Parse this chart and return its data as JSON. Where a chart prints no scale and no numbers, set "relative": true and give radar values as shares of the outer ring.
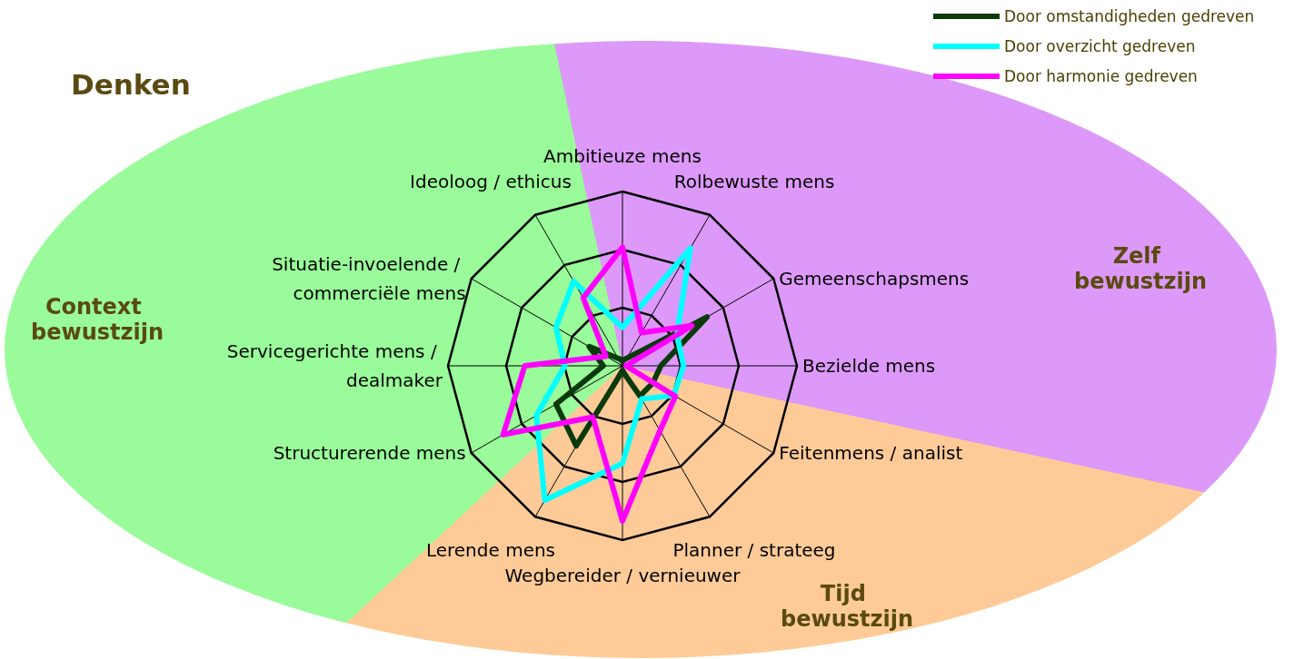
{
  "chart_data": {
    "type": "radar",
    "relative": true,
    "grid": true,
    "legend": "top right",
    "marker": "none",
    "line_style": "solid",
    "annotations": [
      "Denken",
      "Context bewustzijn",
      "Zelf bewustzijn",
      "Tijd bewustzijn"
    ],
    "categories": [
      "Ambitieuze mens",
      "Rolbewuste mens",
      "Gemeenschapsmens",
      "Bezielde mens",
      "Feitenmens / analist",
      "Planner / strateeg",
      "Wegbereider / vernieuwer",
      "Lerende mens",
      "Structurerende mens",
      "Servicegerichte mens / dealmaker",
      "Situatie-invoelende / commerciële mens",
      "Ideoloog / ethicus"
    ],
    "series": [
      {
        "name": "Door omstandigheden gedreven",
        "color": "#0a3a0a",
        "values": [
          0.03,
          0.05,
          0.56,
          0.22,
          0.2,
          0.2,
          0.03,
          0.53,
          0.44,
          0.11,
          0.22,
          0.05
        ]
      },
      {
        "name": "Door overzicht gedreven",
        "color": "#00ffff",
        "values": [
          0.22,
          0.78,
          0.36,
          0.35,
          0.34,
          0.22,
          0.56,
          0.89,
          0.57,
          0.33,
          0.44,
          0.56
        ]
      },
      {
        "name": "Door harmonie gedreven",
        "color": "#ff00ff",
        "values": [
          0.68,
          0.22,
          0.46,
          0.02,
          0.35,
          0.43,
          0.89,
          0.34,
          0.79,
          0.56,
          0.11,
          0.45
        ]
      }
    ]
  }
}
